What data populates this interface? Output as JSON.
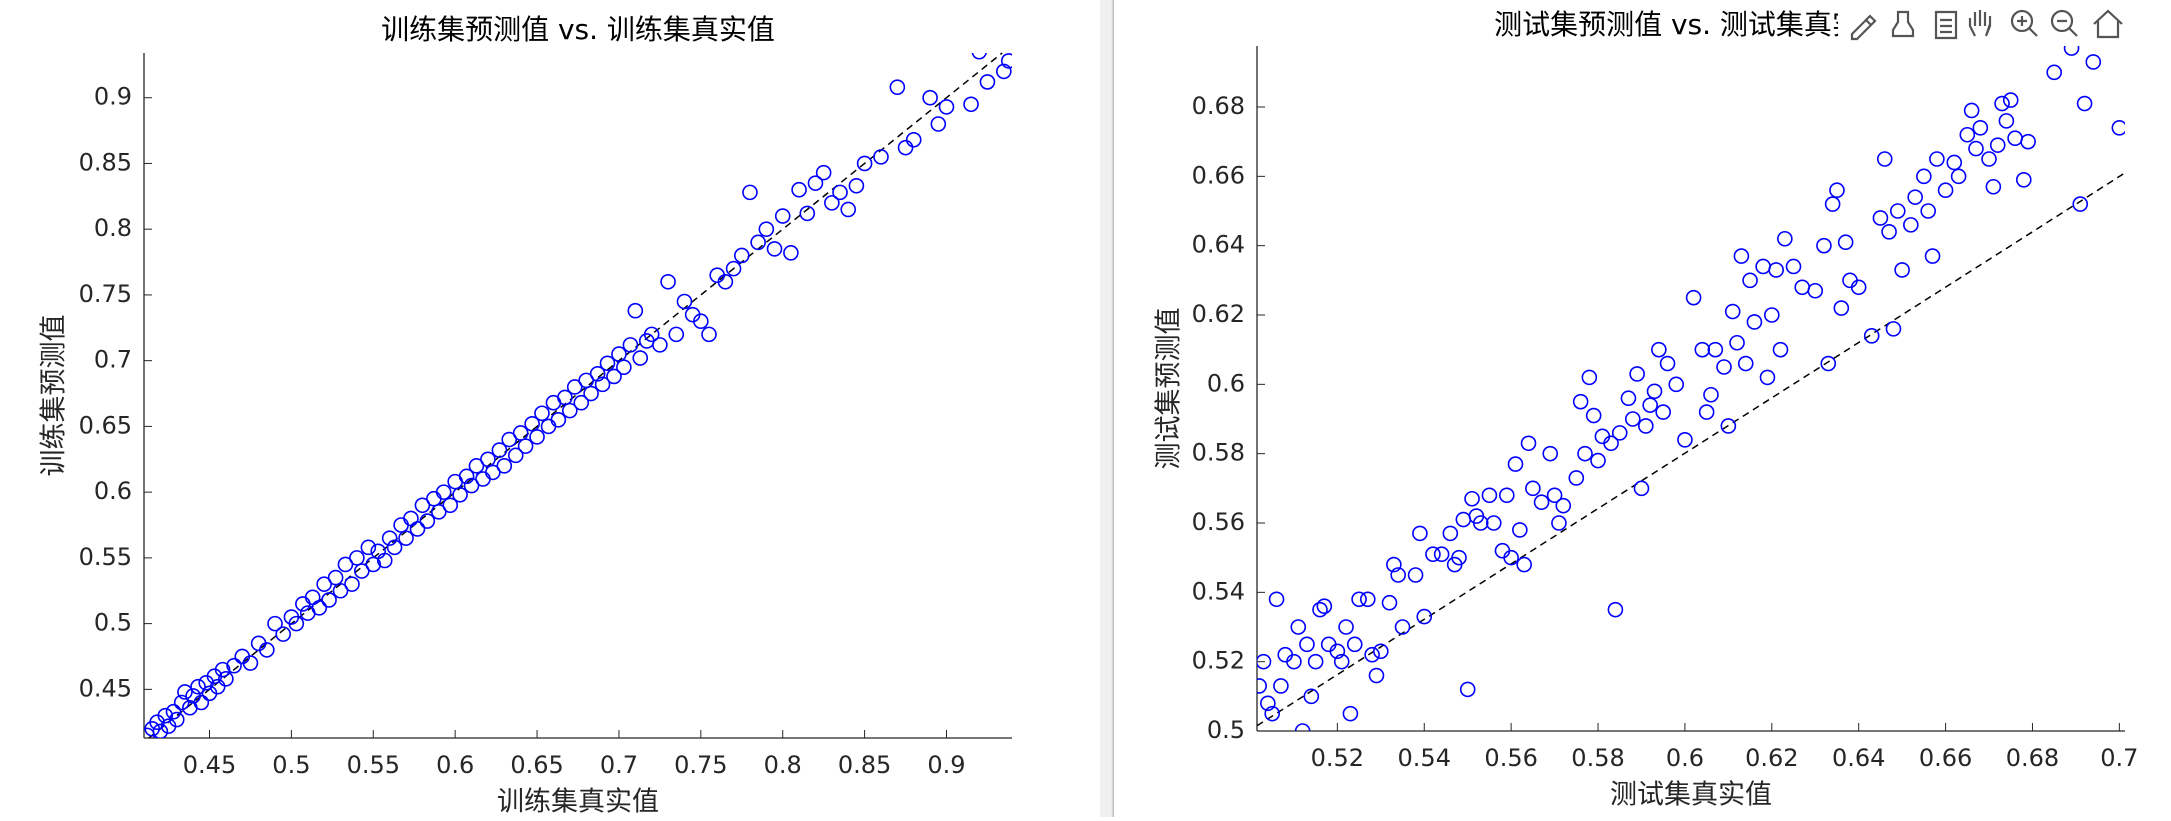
{
  "chart_data": [
    {
      "type": "scatter",
      "title": "训练集预测值 vs. 训练集真实值",
      "xlabel": "训练集真实值",
      "ylabel": "训练集预测值",
      "color": "#0000ff",
      "xlim": [
        0.41,
        0.94
      ],
      "ylim": [
        0.413,
        0.934
      ],
      "xticks": [
        0.45,
        0.5,
        0.55,
        0.6,
        0.65,
        0.7,
        0.75,
        0.8,
        0.85,
        0.9
      ],
      "yticks": [
        0.45,
        0.5,
        0.55,
        0.6,
        0.65,
        0.7,
        0.75,
        0.8,
        0.85,
        0.9
      ],
      "reference_line": {
        "x": [
          0.413,
          0.934
        ],
        "values": [
          0.413,
          0.934
        ]
      },
      "x": [
        0.412,
        0.415,
        0.418,
        0.42,
        0.423,
        0.425,
        0.428,
        0.43,
        0.433,
        0.435,
        0.438,
        0.44,
        0.443,
        0.445,
        0.448,
        0.45,
        0.453,
        0.455,
        0.458,
        0.46,
        0.465,
        0.47,
        0.475,
        0.48,
        0.485,
        0.49,
        0.495,
        0.5,
        0.503,
        0.507,
        0.51,
        0.513,
        0.517,
        0.52,
        0.523,
        0.527,
        0.53,
        0.533,
        0.537,
        0.54,
        0.543,
        0.547,
        0.55,
        0.553,
        0.557,
        0.56,
        0.563,
        0.567,
        0.57,
        0.573,
        0.577,
        0.58,
        0.583,
        0.587,
        0.59,
        0.593,
        0.597,
        0.6,
        0.603,
        0.607,
        0.61,
        0.613,
        0.617,
        0.62,
        0.623,
        0.627,
        0.63,
        0.633,
        0.637,
        0.64,
        0.643,
        0.647,
        0.65,
        0.653,
        0.657,
        0.66,
        0.663,
        0.667,
        0.67,
        0.673,
        0.677,
        0.68,
        0.683,
        0.687,
        0.69,
        0.693,
        0.697,
        0.7,
        0.703,
        0.707,
        0.71,
        0.713,
        0.717,
        0.72,
        0.725,
        0.73,
        0.735,
        0.74,
        0.745,
        0.75,
        0.755,
        0.76,
        0.765,
        0.77,
        0.775,
        0.78,
        0.785,
        0.79,
        0.795,
        0.8,
        0.805,
        0.81,
        0.815,
        0.82,
        0.825,
        0.83,
        0.835,
        0.84,
        0.845,
        0.85,
        0.86,
        0.87,
        0.875,
        0.88,
        0.89,
        0.895,
        0.9,
        0.915,
        0.92,
        0.925,
        0.935,
        0.938
      ],
      "values": [
        0.415,
        0.42,
        0.425,
        0.418,
        0.43,
        0.422,
        0.433,
        0.427,
        0.44,
        0.448,
        0.436,
        0.445,
        0.452,
        0.44,
        0.455,
        0.447,
        0.46,
        0.452,
        0.465,
        0.458,
        0.468,
        0.475,
        0.47,
        0.485,
        0.48,
        0.5,
        0.492,
        0.505,
        0.5,
        0.515,
        0.508,
        0.52,
        0.512,
        0.53,
        0.518,
        0.535,
        0.525,
        0.545,
        0.53,
        0.55,
        0.54,
        0.558,
        0.545,
        0.555,
        0.548,
        0.565,
        0.558,
        0.575,
        0.565,
        0.58,
        0.572,
        0.59,
        0.578,
        0.595,
        0.585,
        0.6,
        0.59,
        0.608,
        0.598,
        0.612,
        0.605,
        0.62,
        0.61,
        0.625,
        0.615,
        0.632,
        0.62,
        0.64,
        0.628,
        0.645,
        0.635,
        0.652,
        0.642,
        0.66,
        0.65,
        0.668,
        0.655,
        0.672,
        0.662,
        0.68,
        0.668,
        0.685,
        0.675,
        0.69,
        0.682,
        0.698,
        0.688,
        0.705,
        0.695,
        0.712,
        0.738,
        0.702,
        0.715,
        0.72,
        0.712,
        0.76,
        0.72,
        0.745,
        0.735,
        0.73,
        0.72,
        0.765,
        0.76,
        0.77,
        0.78,
        0.828,
        0.79,
        0.8,
        0.785,
        0.81,
        0.782,
        0.83,
        0.812,
        0.835,
        0.843,
        0.82,
        0.828,
        0.815,
        0.833,
        0.85,
        0.855,
        0.908,
        0.862,
        0.868,
        0.9,
        0.88,
        0.893,
        0.895,
        0.935,
        0.912,
        0.92,
        0.928
      ]
    },
    {
      "type": "scatter",
      "title": "测试集预测值 vs. 测试集真实值",
      "xlabel": "测试集真实值",
      "ylabel": "测试集预测值",
      "color": "#0000ff",
      "xlim": [
        0.5015,
        0.7013
      ],
      "ylim": [
        0.5,
        0.6976
      ],
      "xticks": [
        0.52,
        0.54,
        0.56,
        0.58,
        0.6,
        0.62,
        0.64,
        0.66,
        0.68,
        0.7
      ],
      "yticks": [
        0.5,
        0.52,
        0.54,
        0.56,
        0.58,
        0.6,
        0.62,
        0.64,
        0.66,
        0.68
      ],
      "reference_line": {
        "x": [
          0.5015,
          0.7013
        ],
        "values": [
          0.5015,
          0.661
        ]
      },
      "x": [
        0.502,
        0.503,
        0.504,
        0.505,
        0.506,
        0.507,
        0.508,
        0.51,
        0.511,
        0.512,
        0.513,
        0.514,
        0.515,
        0.516,
        0.517,
        0.518,
        0.52,
        0.521,
        0.522,
        0.523,
        0.524,
        0.525,
        0.527,
        0.528,
        0.529,
        0.53,
        0.532,
        0.533,
        0.534,
        0.535,
        0.538,
        0.539,
        0.54,
        0.542,
        0.544,
        0.546,
        0.547,
        0.548,
        0.549,
        0.55,
        0.551,
        0.552,
        0.553,
        0.555,
        0.556,
        0.558,
        0.559,
        0.56,
        0.561,
        0.562,
        0.563,
        0.564,
        0.565,
        0.567,
        0.569,
        0.57,
        0.571,
        0.572,
        0.575,
        0.576,
        0.577,
        0.578,
        0.579,
        0.58,
        0.581,
        0.583,
        0.584,
        0.585,
        0.587,
        0.588,
        0.589,
        0.59,
        0.591,
        0.592,
        0.593,
        0.594,
        0.595,
        0.596,
        0.598,
        0.6,
        0.602,
        0.604,
        0.605,
        0.606,
        0.607,
        0.609,
        0.61,
        0.611,
        0.612,
        0.613,
        0.614,
        0.615,
        0.616,
        0.618,
        0.619,
        0.62,
        0.621,
        0.622,
        0.623,
        0.625,
        0.627,
        0.63,
        0.632,
        0.633,
        0.634,
        0.635,
        0.636,
        0.637,
        0.638,
        0.64,
        0.643,
        0.645,
        0.646,
        0.647,
        0.648,
        0.649,
        0.65,
        0.652,
        0.653,
        0.655,
        0.656,
        0.657,
        0.658,
        0.66,
        0.662,
        0.663,
        0.665,
        0.666,
        0.667,
        0.668,
        0.67,
        0.671,
        0.672,
        0.673,
        0.674,
        0.675,
        0.676,
        0.678,
        0.679,
        0.685,
        0.689,
        0.691,
        0.692,
        0.694,
        0.7
      ],
      "values": [
        0.513,
        0.52,
        0.508,
        0.505,
        0.538,
        0.513,
        0.522,
        0.52,
        0.53,
        0.5,
        0.525,
        0.51,
        0.52,
        0.535,
        0.536,
        0.525,
        0.523,
        0.52,
        0.53,
        0.505,
        0.525,
        0.538,
        0.538,
        0.522,
        0.516,
        0.523,
        0.537,
        0.548,
        0.545,
        0.53,
        0.545,
        0.557,
        0.533,
        0.551,
        0.551,
        0.557,
        0.548,
        0.55,
        0.561,
        0.512,
        0.567,
        0.562,
        0.56,
        0.568,
        0.56,
        0.552,
        0.568,
        0.55,
        0.577,
        0.558,
        0.548,
        0.583,
        0.57,
        0.566,
        0.58,
        0.568,
        0.56,
        0.565,
        0.573,
        0.595,
        0.58,
        0.602,
        0.591,
        0.578,
        0.585,
        0.583,
        0.535,
        0.586,
        0.596,
        0.59,
        0.603,
        0.57,
        0.588,
        0.594,
        0.598,
        0.61,
        0.592,
        0.606,
        0.6,
        0.584,
        0.625,
        0.61,
        0.592,
        0.597,
        0.61,
        0.605,
        0.588,
        0.621,
        0.612,
        0.637,
        0.606,
        0.63,
        0.618,
        0.634,
        0.602,
        0.62,
        0.633,
        0.61,
        0.642,
        0.634,
        0.628,
        0.627,
        0.64,
        0.606,
        0.652,
        0.656,
        0.622,
        0.641,
        0.63,
        0.628,
        0.614,
        0.648,
        0.665,
        0.644,
        0.616,
        0.65,
        0.633,
        0.646,
        0.654,
        0.66,
        0.65,
        0.637,
        0.665,
        0.656,
        0.664,
        0.66,
        0.672,
        0.679,
        0.668,
        0.674,
        0.665,
        0.657,
        0.669,
        0.681,
        0.676,
        0.682,
        0.671,
        0.659,
        0.67,
        0.69,
        0.697,
        0.652,
        0.681,
        0.693,
        0.674
      ]
    }
  ]
}
